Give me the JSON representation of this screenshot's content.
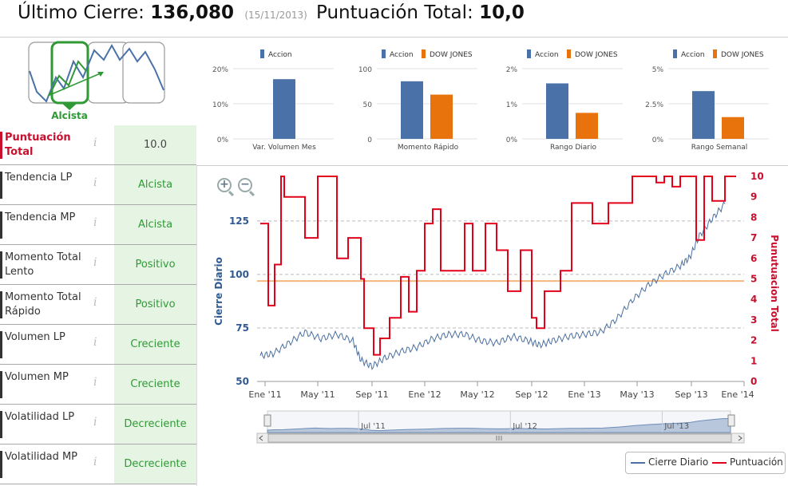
{
  "header": {
    "last_close_label": "Último Cierre:",
    "last_close_value": "136,080",
    "last_close_date": "(15/11/2013)",
    "total_score_label": "Puntuación Total:",
    "total_score_value": "10,0"
  },
  "trend": {
    "label": "Alcista",
    "accent": "#2f9a35"
  },
  "metrics": [
    {
      "label": "Puntuación Total",
      "value": "10.0"
    },
    {
      "label": "Tendencia LP",
      "value": "Alcista"
    },
    {
      "label": "Tendencia MP",
      "value": "Alcista"
    },
    {
      "label": "Momento Total Lento",
      "value": "Positivo"
    },
    {
      "label": "Momento Total Rápido",
      "value": "Positivo"
    },
    {
      "label": "Volumen LP",
      "value": "Creciente"
    },
    {
      "label": "Volumen MP",
      "value": "Creciente"
    },
    {
      "label": "Volatilidad LP",
      "value": "Decreciente"
    },
    {
      "label": "Volatilidad MP",
      "value": "Decreciente"
    }
  ],
  "info_icon_glyph": "i",
  "zoom": {
    "in_glyph": "+",
    "out_glyph": "−"
  },
  "legend": {
    "close_label": "Cierre Diario",
    "score_label": "Puntuación"
  },
  "colors": {
    "accion": "#4a72a8",
    "dow": "#e8730d",
    "score": "#e3001b",
    "close": "#4a6fa0",
    "threshold": "#f2b77f",
    "red_label": "#c8102e"
  },
  "chart_data": [
    {
      "type": "bar",
      "title": "Var. Volumen Mes",
      "legend": [
        "Accion"
      ],
      "yticks": [
        "20%",
        "10%",
        "0%"
      ],
      "ylim": [
        0,
        20
      ],
      "series": [
        {
          "name": "Accion",
          "values": [
            17
          ]
        }
      ]
    },
    {
      "type": "bar",
      "title": "Momento Rápido",
      "legend": [
        "Accion",
        "DOW JONES"
      ],
      "yticks": [
        "100",
        "50",
        "0"
      ],
      "ylim": [
        0,
        100
      ],
      "series": [
        {
          "name": "Accion",
          "values": [
            82
          ]
        },
        {
          "name": "DOW JONES",
          "values": [
            63
          ]
        }
      ]
    },
    {
      "type": "bar",
      "title": "Rango Diario",
      "legend": [
        "Accion",
        "DOW JONES"
      ],
      "yticks": [
        "2%",
        "1%",
        "0%"
      ],
      "ylim": [
        0,
        2
      ],
      "series": [
        {
          "name": "Accion",
          "values": [
            1.58
          ]
        },
        {
          "name": "DOW JONES",
          "values": [
            0.74
          ]
        }
      ]
    },
    {
      "type": "bar",
      "title": "Rango Semanal",
      "legend": [
        "Accion",
        "DOW JONES"
      ],
      "yticks": [
        "5%",
        "2.5%",
        "0%"
      ],
      "ylim": [
        0,
        5
      ],
      "series": [
        {
          "name": "Accion",
          "values": [
            3.4
          ]
        },
        {
          "name": "DOW JONES",
          "values": [
            1.55
          ]
        }
      ]
    },
    {
      "type": "line",
      "ylabel": "Cierre Diario",
      "y2label": "Punutuacion Total",
      "ylim": [
        50,
        135
      ],
      "y2lim": [
        0,
        10
      ],
      "yticks": [
        "125",
        "100",
        "75",
        "50"
      ],
      "y2ticks": [
        "10",
        "9",
        "8",
        "7",
        "6",
        "5",
        "4",
        "3",
        "2",
        "1",
        "0"
      ],
      "xticks": [
        "Ene '11",
        "May '11",
        "Sep '11",
        "Ene '12",
        "May '12",
        "Sep '12",
        "Ene '13",
        "May '13",
        "Sep '13",
        "Ene '14"
      ],
      "navigator_ticks": [
        "Jul '11",
        "Jul '12",
        "Jul '13"
      ],
      "threshold": 4.9,
      "series": [
        {
          "name": "Cierre Diario",
          "x": [
            2010.97,
            2011.05,
            2011.15,
            2011.25,
            2011.35,
            2011.45,
            2011.55,
            2011.6,
            2011.67,
            2011.75,
            2011.85,
            2011.95,
            2012.05,
            2012.15,
            2012.25,
            2012.35,
            2012.45,
            2012.55,
            2012.65,
            2012.72,
            2012.8,
            2012.9,
            2013.0,
            2013.1,
            2013.2,
            2013.3,
            2013.4,
            2013.5,
            2013.6,
            2013.66,
            2013.72,
            2013.8,
            2013.88
          ],
          "values": [
            62,
            63,
            68,
            73,
            70,
            72,
            69,
            60,
            57,
            61,
            64,
            66,
            70,
            72,
            72,
            69,
            68,
            71,
            69,
            67,
            69,
            71,
            72,
            73,
            79,
            88,
            95,
            100,
            104,
            108,
            118,
            126,
            133
          ]
        },
        {
          "name": "Puntuación",
          "x": [
            2010.97,
            2011.02,
            2011.06,
            2011.1,
            2011.12,
            2011.25,
            2011.33,
            2011.45,
            2011.52,
            2011.6,
            2011.62,
            2011.68,
            2011.72,
            2011.78,
            2011.85,
            2011.9,
            2011.95,
            2012.0,
            2012.05,
            2012.1,
            2012.17,
            2012.25,
            2012.3,
            2012.38,
            2012.45,
            2012.52,
            2012.6,
            2012.67,
            2012.7,
            2012.75,
            2012.85,
            2012.92,
            2013.05,
            2013.15,
            2013.3,
            2013.45,
            2013.5,
            2013.55,
            2013.6,
            2013.7,
            2013.75,
            2013.8,
            2013.88
          ],
          "values": [
            7.7,
            3.7,
            5.7,
            10,
            9,
            7,
            10,
            6,
            7,
            5,
            2.6,
            1.3,
            2.1,
            3.1,
            5.1,
            3.4,
            5.4,
            7.7,
            8.4,
            5.4,
            5.4,
            7.7,
            5.4,
            7.7,
            6.4,
            4.4,
            6.4,
            3.1,
            2.6,
            4.4,
            5.4,
            8.7,
            7.7,
            8.7,
            10,
            9.7,
            10,
            9.5,
            10,
            6.9,
            10,
            8.8,
            10
          ]
        }
      ]
    }
  ]
}
